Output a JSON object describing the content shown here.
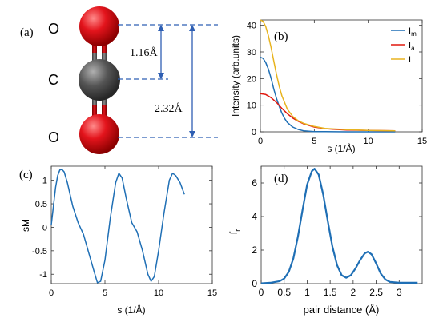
{
  "panel_a": {
    "tag": "(a)",
    "atom_labels": [
      "O",
      "C",
      "O"
    ],
    "bond_short": "1.16Å",
    "bond_long": "2.32Å",
    "colors": {
      "oxygen": "#e3141c",
      "carbon": "#555555",
      "bond": "#6b6b6b",
      "dimension": "#2f5fb3"
    }
  },
  "chart_data": [
    {
      "panel": "b",
      "tag": "(b)",
      "type": "line",
      "xlabel": "s (1/Å)",
      "ylabel": "Intensity (arb.units)",
      "xlim": [
        0,
        15
      ],
      "ylim": [
        0,
        42
      ],
      "xticks": [
        0,
        5,
        10,
        15
      ],
      "yticks": [
        0,
        10,
        20,
        30,
        40
      ],
      "grid": false,
      "legend": "top-right",
      "series": [
        {
          "name": "Im",
          "main": "I",
          "sub": "m",
          "color": "#1f6fb5",
          "x": [
            0,
            0.25,
            0.5,
            0.75,
            1,
            1.25,
            1.5,
            1.75,
            2,
            2.25,
            2.5,
            3,
            3.5,
            4,
            5,
            6,
            8,
            10,
            12.5
          ],
          "y": [
            28,
            27.6,
            26,
            23.5,
            20,
            16,
            12.5,
            9.5,
            7,
            5,
            3.5,
            1.8,
            0.9,
            0.4,
            0.1,
            0.05,
            0,
            0,
            0
          ]
        },
        {
          "name": "Ia",
          "main": "I",
          "sub": "a",
          "color": "#e0190f",
          "x": [
            0,
            0.5,
            1,
            1.5,
            2,
            2.5,
            3,
            3.5,
            4,
            5,
            6,
            7,
            8,
            10,
            12.5
          ],
          "y": [
            14.3,
            14,
            12.8,
            11,
            8.8,
            6.8,
            5.2,
            4,
            3,
            1.8,
            1.2,
            0.9,
            0.7,
            0.5,
            0.4
          ]
        },
        {
          "name": "I",
          "main": "I",
          "sub": "",
          "color": "#e8b420",
          "x": [
            0,
            0.25,
            0.5,
            0.75,
            1,
            1.25,
            1.5,
            1.75,
            2,
            2.5,
            3,
            3.5,
            4,
            5,
            6,
            8,
            10,
            12.5
          ],
          "y": [
            42,
            41.5,
            39.5,
            36,
            31.5,
            26.5,
            21.5,
            17,
            13.5,
            8.5,
            5.8,
            4.2,
            3.2,
            2,
            1.3,
            0.8,
            0.5,
            0.4
          ]
        }
      ]
    },
    {
      "panel": "c",
      "tag": "(c)",
      "type": "line",
      "xlabel": "s (1/Å)",
      "ylabel": "sM",
      "xlim": [
        0,
        15
      ],
      "ylim": [
        -1.2,
        1.3
      ],
      "xticks": [
        0,
        5,
        10,
        15
      ],
      "yticks": [
        -1,
        -0.5,
        0,
        0.5,
        1
      ],
      "grid": false,
      "series": [
        {
          "name": "sM",
          "color": "#1f6fb5",
          "x": [
            0,
            0.2,
            0.4,
            0.6,
            0.8,
            1.0,
            1.2,
            1.5,
            2.0,
            2.5,
            3.0,
            3.5,
            4.0,
            4.3,
            4.6,
            5.0,
            5.5,
            6.0,
            6.3,
            6.6,
            7.0,
            7.5,
            8.0,
            8.5,
            9.0,
            9.3,
            9.6,
            10.0,
            10.5,
            11.0,
            11.3,
            11.6,
            12.0,
            12.4
          ],
          "y": [
            0.05,
            0.45,
            0.85,
            1.1,
            1.22,
            1.23,
            1.18,
            0.95,
            0.45,
            0.1,
            -0.15,
            -0.55,
            -0.95,
            -1.18,
            -1.15,
            -0.7,
            0.2,
            0.95,
            1.15,
            1.05,
            0.6,
            0.1,
            -0.1,
            -0.5,
            -1.0,
            -1.15,
            -1.05,
            -0.5,
            0.3,
            1.0,
            1.15,
            1.1,
            0.95,
            0.7
          ]
        }
      ]
    },
    {
      "panel": "d",
      "tag": "(d)",
      "type": "line",
      "xlabel": "pair distance (Å)",
      "ylabel": "f_r",
      "ylabel_main": "f",
      "ylabel_sub": "r",
      "xlim": [
        0,
        3.5
      ],
      "ylim": [
        0,
        7
      ],
      "xticks": [
        0,
        0.5,
        1,
        1.5,
        2,
        2.5,
        3
      ],
      "yticks": [
        0,
        2,
        4,
        6
      ],
      "grid": false,
      "series": [
        {
          "name": "fr",
          "color": "#1f6fb5",
          "x": [
            0,
            0.2,
            0.4,
            0.5,
            0.6,
            0.7,
            0.8,
            0.9,
            1.0,
            1.1,
            1.16,
            1.25,
            1.35,
            1.45,
            1.55,
            1.65,
            1.75,
            1.85,
            1.95,
            2.05,
            2.15,
            2.25,
            2.32,
            2.4,
            2.5,
            2.6,
            2.7,
            2.8,
            3.0,
            3.2,
            3.4
          ],
          "y": [
            0.02,
            0.05,
            0.15,
            0.3,
            0.7,
            1.5,
            2.8,
            4.4,
            5.9,
            6.7,
            6.85,
            6.5,
            5.3,
            3.7,
            2.2,
            1.1,
            0.5,
            0.35,
            0.5,
            0.9,
            1.4,
            1.8,
            1.9,
            1.75,
            1.2,
            0.6,
            0.25,
            0.1,
            0.05,
            0.05,
            0.05
          ]
        }
      ]
    }
  ]
}
